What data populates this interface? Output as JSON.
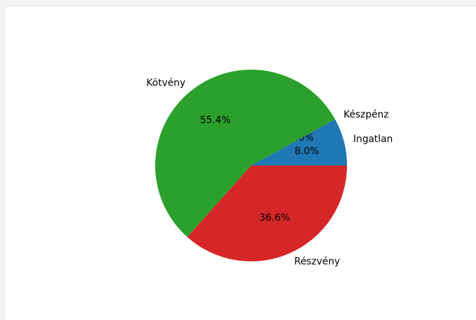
{
  "chart_data": {
    "type": "pie",
    "start_angle_deg": 0,
    "direction": "counterclockwise",
    "slices": [
      {
        "label": "Ingatlan",
        "value": 8.0,
        "pct_label": "8.0%",
        "color": "#1f77b4"
      },
      {
        "label": "Készpénz",
        "value": 0.0,
        "pct_label": "0.0%",
        "color": "#ff7f0e"
      },
      {
        "label": "Kötvény",
        "value": 55.4,
        "pct_label": "55.4%",
        "color": "#2ca02c"
      },
      {
        "label": "Részvény",
        "value": 36.6,
        "pct_label": "36.6%",
        "color": "#d62728"
      }
    ]
  }
}
